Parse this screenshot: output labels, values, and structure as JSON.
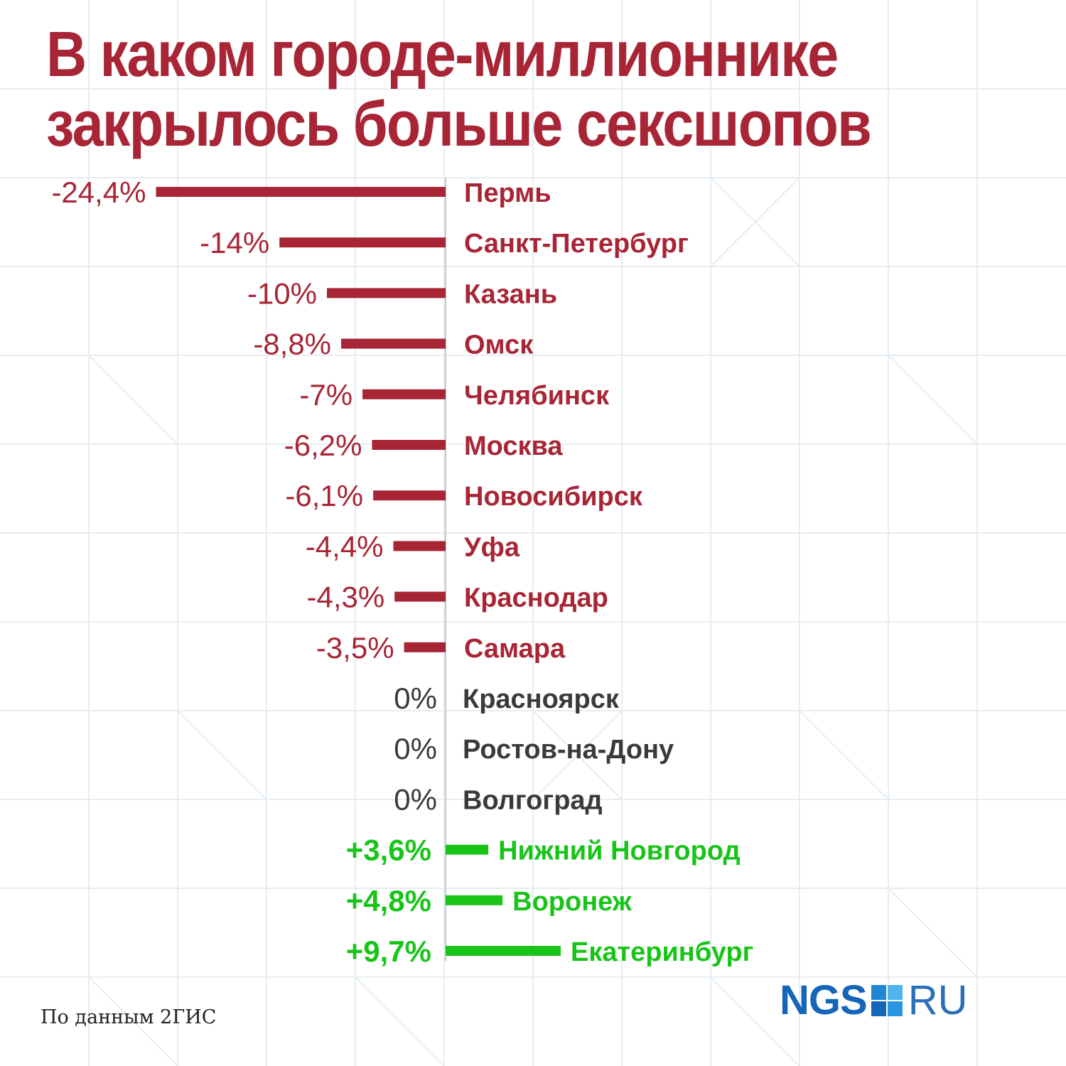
{
  "title": {
    "line1": "В каком городе-миллионнике",
    "line2": "закрылось больше сексшопов"
  },
  "colors": {
    "negative": "#a82535",
    "zero": "#3a3a3a",
    "positive": "#18c418",
    "title": "#a82535",
    "logo": "#1565b8",
    "logo_ru": "#2a6fb8"
  },
  "chart_data": {
    "type": "bar",
    "orientation": "horizontal",
    "categories": [
      "Пермь",
      "Санкт-Петербург",
      "Казань",
      "Омск",
      "Челябинск",
      "Москва",
      "Новосибирск",
      "Уфа",
      "Краснодар",
      "Самара",
      "Красноярск",
      "Ростов-на-Дону",
      "Волгоград",
      "Нижний Новгород",
      "Воронеж",
      "Екатеринбург"
    ],
    "values": [
      -24.4,
      -14,
      -10,
      -8.8,
      -7,
      -6.2,
      -6.1,
      -4.4,
      -4.3,
      -3.5,
      0,
      0,
      0,
      3.6,
      4.8,
      9.7
    ],
    "value_labels": [
      "-24,4%",
      "-14%",
      "-10%",
      "-8,8%",
      "-7%",
      "-6,2%",
      "-6,1%",
      "-4,4%",
      "-4,3%",
      "-3,5%",
      "0%",
      "0%",
      "0%",
      "+3,6%",
      "+4,8%",
      "+9,7%"
    ],
    "title": "В каком городе-миллионнике закрылось больше сексшопов",
    "legend": false,
    "grid": false
  },
  "source": "По данным 2ГИС",
  "logo": {
    "left": "NGS",
    "right": "RU"
  }
}
